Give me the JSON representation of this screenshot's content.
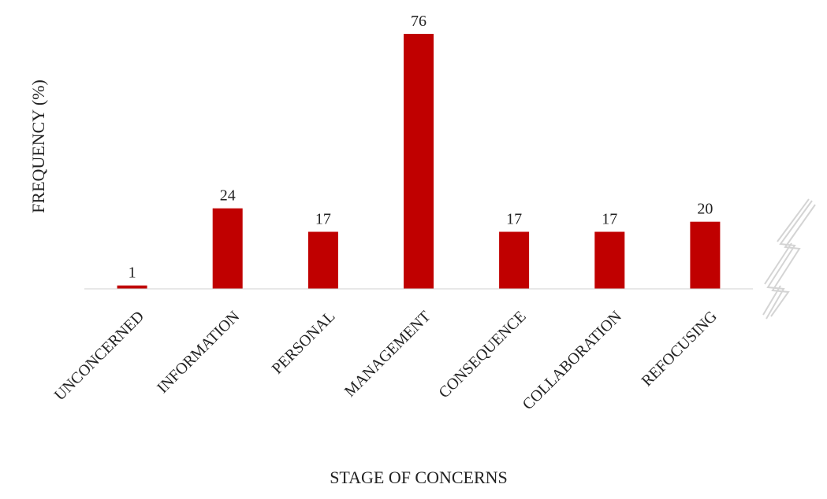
{
  "chart_data": {
    "type": "bar",
    "title": "",
    "xlabel": "STAGE OF CONCERNS",
    "ylabel": "FREQUENCY (%)",
    "categories": [
      "UNCONCERNED",
      "INFORMATION",
      "PERSONAL",
      "MANAGEMENT",
      "CONSEQUENCE",
      "COLLABORATION",
      "REFOCUSING"
    ],
    "values": [
      1,
      24,
      17,
      76,
      17,
      17,
      20
    ],
    "data_labels": [
      "1",
      "24",
      "17",
      "76",
      "17",
      "17",
      "20"
    ],
    "ylim": [
      0,
      76
    ],
    "grid": false,
    "legend": "none",
    "bar_color": "#C00000"
  },
  "decorations": {
    "watermark_icon": "quill-watermark-icon"
  }
}
